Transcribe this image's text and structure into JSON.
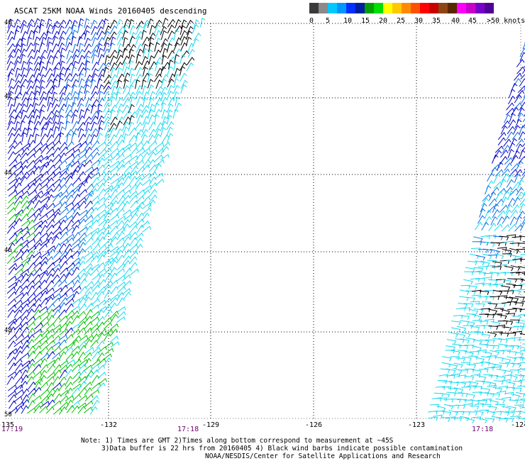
{
  "header": {
    "title": "ASCAT 25KM NOAA Winds 20160405 descending"
  },
  "colorbar": {
    "segments": [
      {
        "color": "#3a3a3a"
      },
      {
        "color": "#8a8a8a"
      },
      {
        "color": "#00c8ff"
      },
      {
        "color": "#0096ff"
      },
      {
        "color": "#0030ff"
      },
      {
        "color": "#001ea0"
      },
      {
        "color": "#00a000"
      },
      {
        "color": "#00e000"
      },
      {
        "color": "#ffff00"
      },
      {
        "color": "#ffc800"
      },
      {
        "color": "#ff8c00"
      },
      {
        "color": "#ff5000"
      },
      {
        "color": "#ff0000"
      },
      {
        "color": "#c80000"
      },
      {
        "color": "#8c4614"
      },
      {
        "color": "#5a2800"
      },
      {
        "color": "#ff00ff"
      },
      {
        "color": "#c800c8"
      },
      {
        "color": "#7800c8"
      },
      {
        "color": "#500096"
      }
    ],
    "labels": [
      "0",
      "5",
      "10",
      "15",
      "20",
      "25",
      "30",
      "35",
      "40",
      "45",
      ">50 knots"
    ]
  },
  "axes": {
    "x_ticks": [
      "-135",
      "-132",
      "-129",
      "-126",
      "-123",
      "-124"
    ],
    "y_ticks": [
      "40",
      "42",
      "44",
      "46",
      "48",
      "50"
    ],
    "time_labels": [
      "17:19",
      "17:18",
      "17:18"
    ]
  },
  "notes": {
    "line1": "Note: 1) Times are GMT 2)Times along bottom correspond to measurement at ~45S",
    "line2": "3)Data buffer is 22 hrs from 20160405 4) Black wind barbs indicate possible contamination",
    "line3": "NOAA/NESDIS/Center for Satellite Applications and Research"
  },
  "wind_colors": {
    "contaminated": "#000000",
    "light": "#19d9f0",
    "moderate": "#0a6ee6",
    "strong": "#0000c8",
    "stronger": "#00c000"
  }
}
